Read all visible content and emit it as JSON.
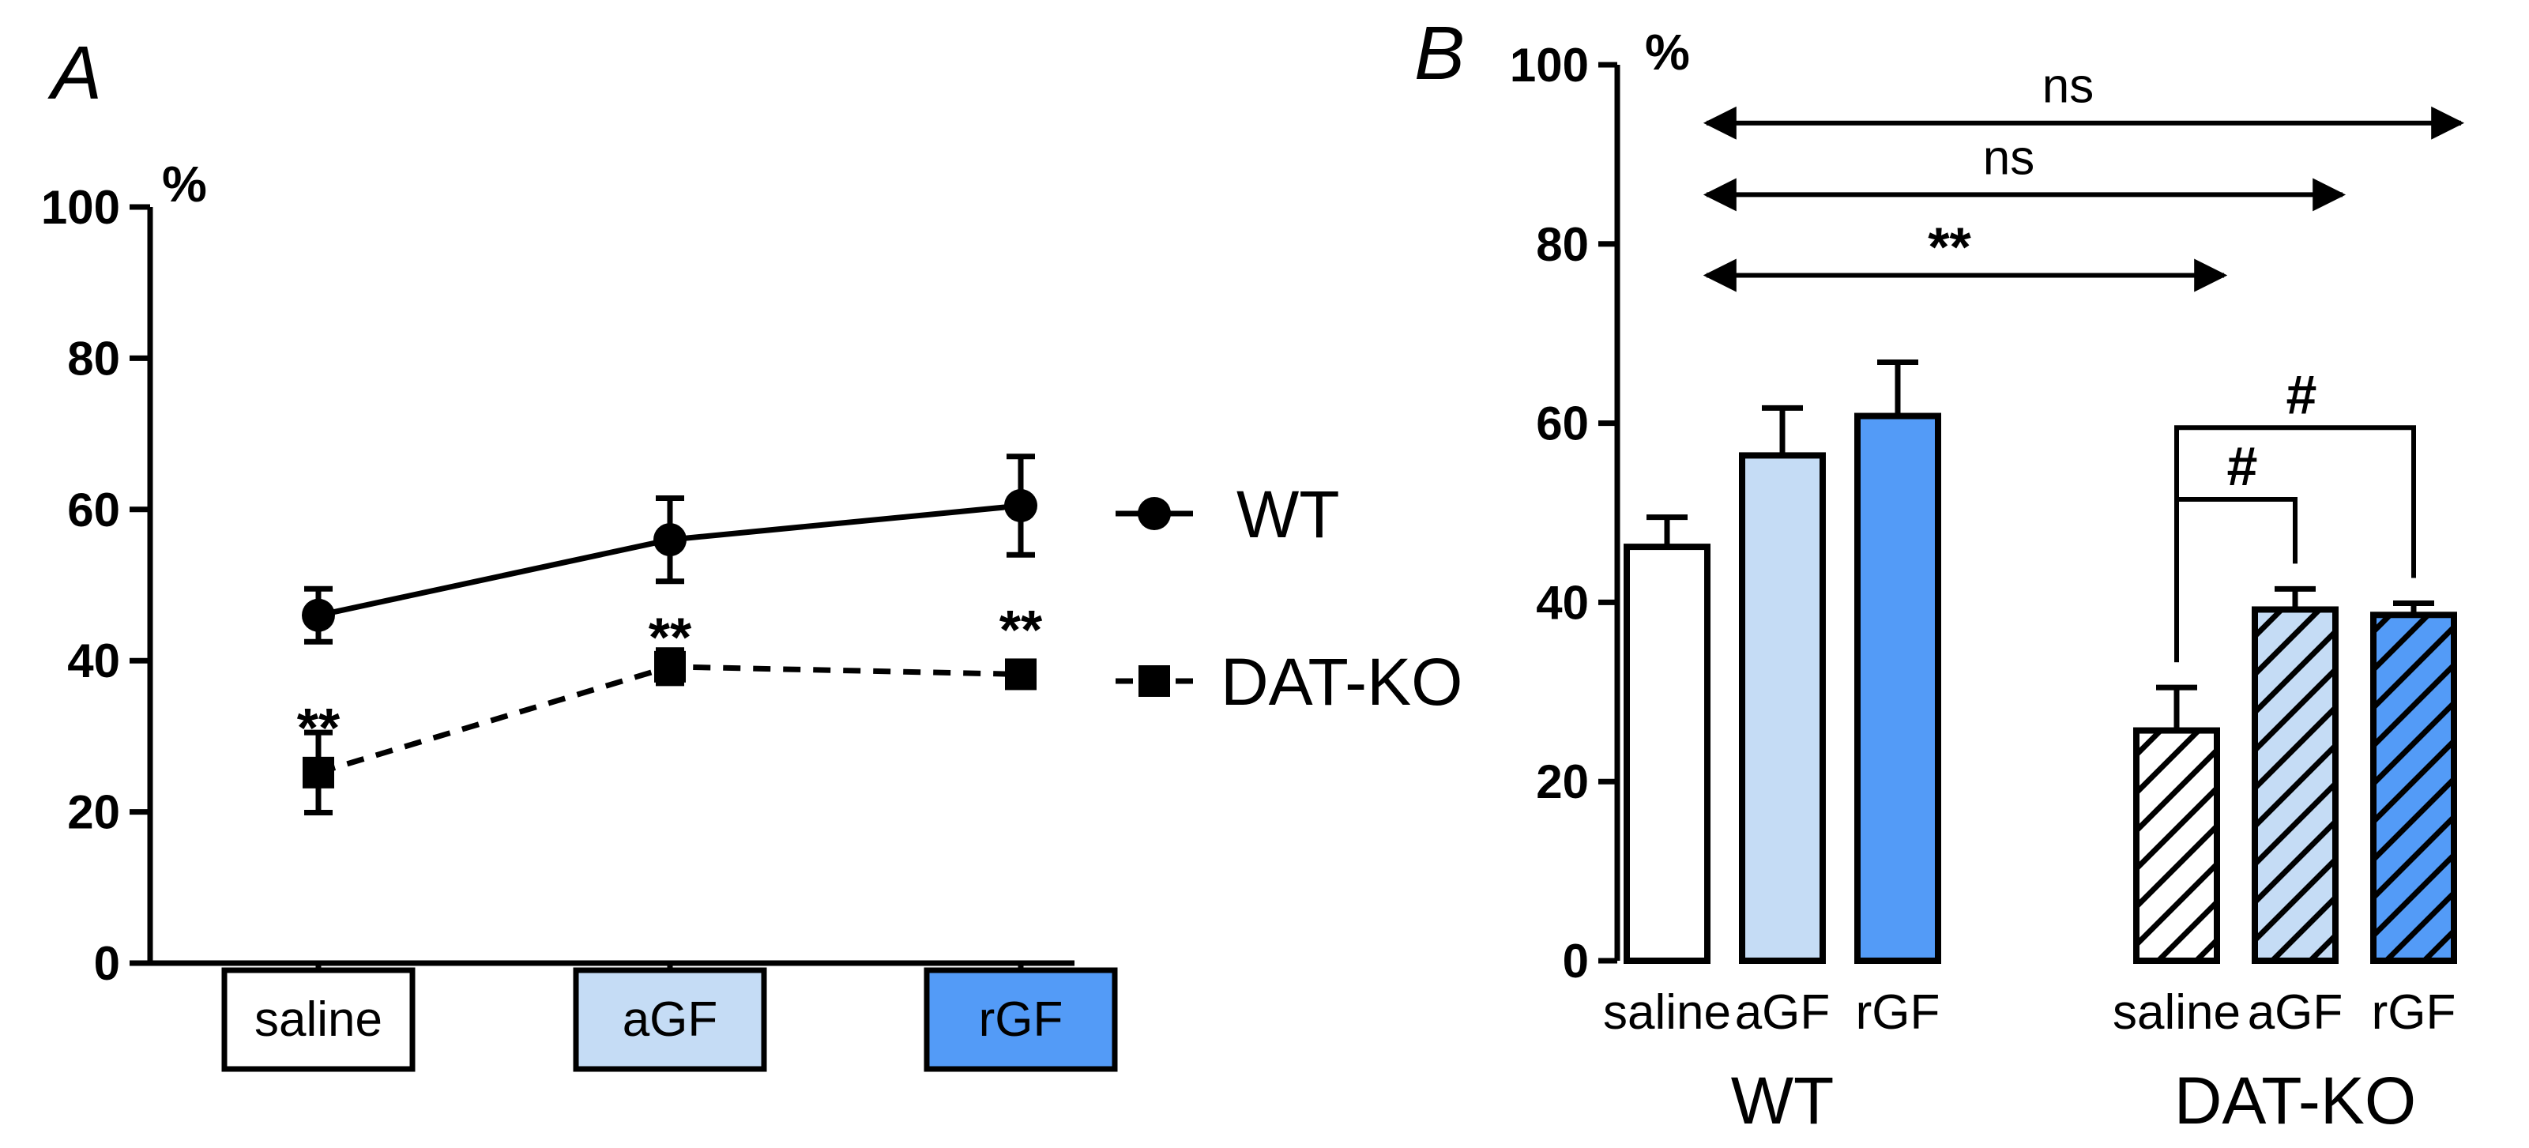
{
  "chart_data": [
    {
      "panel": "A",
      "type": "line",
      "ylabel": "%",
      "ylim": [
        0,
        100
      ],
      "yticks": [
        0,
        20,
        40,
        60,
        80,
        100
      ],
      "categories": [
        "saline",
        "aGF",
        "rGF"
      ],
      "category_colors": [
        "#ffffff",
        "#c5dcf5",
        "#539bf7"
      ],
      "series": [
        {
          "name": "WT",
          "marker": "circle",
          "linestyle": "solid",
          "values": [
            46,
            56,
            60.5
          ],
          "errors": [
            3.5,
            5.5,
            6.5
          ]
        },
        {
          "name": "DAT-KO",
          "marker": "square",
          "linestyle": "dashed",
          "values": [
            25.2,
            39.2,
            38.2
          ],
          "errors": [
            5.3,
            2.2,
            1.0
          ]
        }
      ],
      "annotations": [
        {
          "category": "saline",
          "text": "**",
          "y": 33
        },
        {
          "category": "aGF",
          "text": "**",
          "y": 45
        },
        {
          "category": "rGF",
          "text": "**",
          "y": 46
        }
      ]
    },
    {
      "panel": "B",
      "type": "bar",
      "ylabel": "%",
      "ylim": [
        0,
        100
      ],
      "yticks": [
        0,
        20,
        40,
        60,
        80,
        100
      ],
      "groups": [
        {
          "name": "WT",
          "hatched": false,
          "bars": [
            {
              "label": "saline",
              "value": 46.2,
              "error": 3.3,
              "color": "#ffffff"
            },
            {
              "label": "aGF",
              "value": 56.4,
              "error": 5.3,
              "color": "#c5dcf5"
            },
            {
              "label": "rGF",
              "value": 60.8,
              "error": 6.0,
              "color": "#539bf7"
            }
          ]
        },
        {
          "name": "DAT-KO",
          "hatched": true,
          "bars": [
            {
              "label": "saline",
              "value": 25.7,
              "error": 4.8,
              "color": "#ffffff"
            },
            {
              "label": "aGF",
              "value": 39.2,
              "error": 2.3,
              "color": "#c5dcf5"
            },
            {
              "label": "rGF",
              "value": 38.6,
              "error": 1.3,
              "color": "#539bf7"
            }
          ]
        }
      ],
      "comparisons": [
        {
          "text": "ns",
          "from": "WT saline",
          "to": "DAT-KO rGF",
          "y": 93.5,
          "style": "double-arrow"
        },
        {
          "text": "ns",
          "from": "WT saline",
          "to": "DAT-KO aGF",
          "y": 85.5,
          "style": "double-arrow"
        },
        {
          "text": "**",
          "from": "WT saline",
          "to": "DAT-KO saline",
          "y": 76.5,
          "style": "double-arrow"
        },
        {
          "text": "#",
          "from": "DAT-KO saline",
          "to": "DAT-KO rGF",
          "y": 59.5,
          "style": "bracket"
        },
        {
          "text": "#",
          "from": "DAT-KO saline",
          "to": "DAT-KO aGF",
          "y": 51.5,
          "style": "bracket"
        }
      ]
    }
  ]
}
